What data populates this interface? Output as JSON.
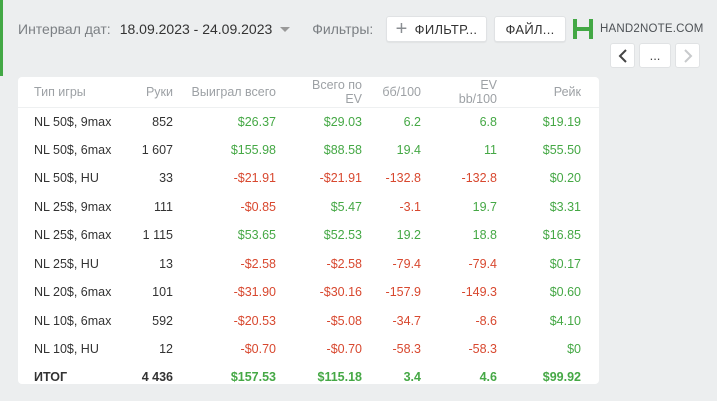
{
  "toolbar": {
    "interval_label": "Интервал дат:",
    "date_range": "18.09.2023 - 24.09.2023",
    "filters_label": "Фильтры:",
    "filter_button": "ФИЛЬТР...",
    "file_button": "ФАЙЛ...",
    "logo_text": "HAND2NOTE.COM"
  },
  "pager": {
    "more_label": "..."
  },
  "table": {
    "headers": [
      "Тип игры",
      "Руки",
      "Выиграл всего",
      "Всего по EV",
      "бб/100",
      "EV bb/100",
      "Рейк"
    ],
    "rows": [
      {
        "game": "NL 50$, 9max",
        "hands": "852",
        "won": "$26.37",
        "ev": "$29.03",
        "bb100": "6.2",
        "evbb100": "6.8",
        "rake": "$19.19"
      },
      {
        "game": "NL 50$, 6max",
        "hands": "1 607",
        "won": "$155.98",
        "ev": "$88.58",
        "bb100": "19.4",
        "evbb100": "11",
        "rake": "$55.50"
      },
      {
        "game": "NL 50$, HU",
        "hands": "33",
        "won": "-$21.91",
        "ev": "-$21.91",
        "bb100": "-132.8",
        "evbb100": "-132.8",
        "rake": "$0.20"
      },
      {
        "game": "NL 25$, 9max",
        "hands": "111",
        "won": "-$0.85",
        "ev": "$5.47",
        "bb100": "-3.1",
        "evbb100": "19.7",
        "rake": "$3.31"
      },
      {
        "game": "NL 25$, 6max",
        "hands": "1 115",
        "won": "$53.65",
        "ev": "$52.53",
        "bb100": "19.2",
        "evbb100": "18.8",
        "rake": "$16.85"
      },
      {
        "game": "NL 25$, HU",
        "hands": "13",
        "won": "-$2.58",
        "ev": "-$2.58",
        "bb100": "-79.4",
        "evbb100": "-79.4",
        "rake": "$0.17"
      },
      {
        "game": "NL 20$, 6max",
        "hands": "101",
        "won": "-$31.90",
        "ev": "-$30.16",
        "bb100": "-157.9",
        "evbb100": "-149.3",
        "rake": "$0.60"
      },
      {
        "game": "NL 10$, 6max",
        "hands": "592",
        "won": "-$20.53",
        "ev": "-$5.08",
        "bb100": "-34.7",
        "evbb100": "-8.6",
        "rake": "$4.10"
      },
      {
        "game": "NL 10$, HU",
        "hands": "12",
        "won": "-$0.70",
        "ev": "-$0.70",
        "bb100": "-58.3",
        "evbb100": "-58.3",
        "rake": "$0"
      }
    ],
    "total": {
      "game": "ИТОГ",
      "hands": "4 436",
      "won": "$157.53",
      "ev": "$115.18",
      "bb100": "3.4",
      "evbb100": "4.6",
      "rake": "$99.92"
    }
  },
  "colors": {
    "positive": "#45a845",
    "negative": "#d8482f",
    "brand": "#43a845"
  }
}
